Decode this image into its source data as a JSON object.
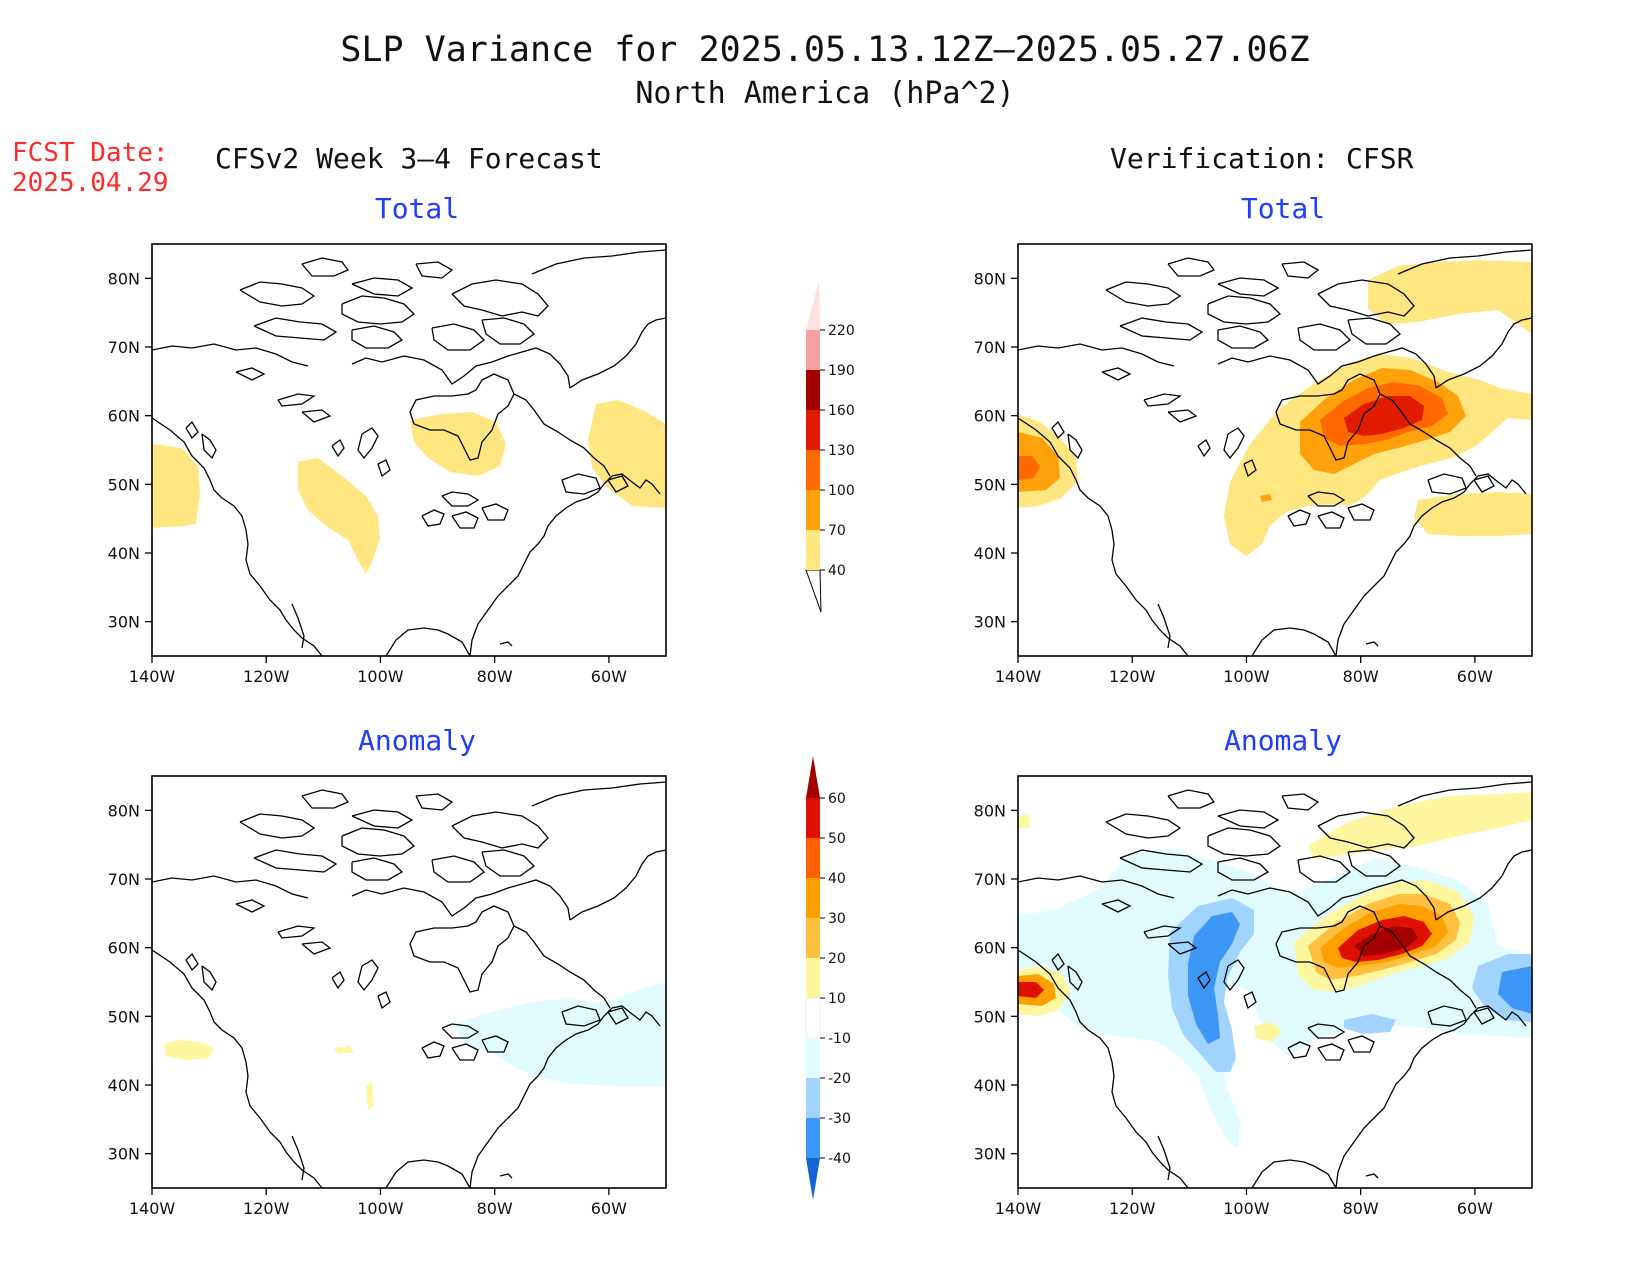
{
  "title": "SLP Variance for 2025.05.13.12Z–2025.05.27.06Z",
  "subtitle": "North America (hPa^2)",
  "fcst_date_label": "FCST Date:",
  "fcst_date": "2025.04.29",
  "left_column_title": "CFSv2 Week 3–4 Forecast",
  "right_column_title": "Verification: CFSR",
  "panels": {
    "forecast_total": {
      "subtitle": "Total"
    },
    "forecast_anomaly": {
      "subtitle": "Anomaly"
    },
    "verification_total": {
      "subtitle": "Total"
    },
    "verification_anomaly": {
      "subtitle": "Anomaly"
    }
  },
  "map": {
    "lon_range": [
      -140,
      -50
    ],
    "lat_range": [
      25,
      85
    ],
    "lon_ticks": [
      "140W",
      "120W",
      "100W",
      "80W",
      "60W"
    ],
    "lat_ticks": [
      "30N",
      "40N",
      "50N",
      "60N",
      "70N",
      "80N"
    ]
  },
  "total_colorbar": {
    "levels": [
      "40",
      "70",
      "100",
      "130",
      "160",
      "190",
      "220"
    ],
    "colors": [
      "#ffe680",
      "#ffa10a",
      "#ff6a00",
      "#e11b00",
      "#a00000",
      "#f4a3a3",
      "#fde0e0"
    ]
  },
  "anomaly_colorbar": {
    "levels": [
      "60",
      "50",
      "40",
      "30",
      "20",
      "10",
      "-10",
      "-20",
      "-30",
      "-40"
    ],
    "colors": [
      "#a50000",
      "#e01000",
      "#ff6000",
      "#ffa000",
      "#ffc040",
      "#fff6a0",
      "#ffffff",
      "#e0fcff",
      "#a0d4ff",
      "#3c96f5",
      "#1464d2"
    ]
  },
  "chart_data": [
    {
      "type": "map",
      "name": "forecast_total",
      "features": [
        "SLP variance 40-70 over Hudson Bay, Labrador, NE Pacific coast, central Plains"
      ]
    },
    {
      "type": "map",
      "name": "forecast_anomaly",
      "features": [
        "weak -10 to -20 over Great Lakes / New England",
        "weak 10-20 over NE Pacific"
      ]
    },
    {
      "type": "map",
      "name": "verification_total",
      "features": [
        "maximum 130-160 over Quebec/Labrador",
        "40-100 off Pacific NW coast"
      ]
    },
    {
      "type": "map",
      "name": "verification_anomaly",
      "features": [
        "positive 40-60 over Quebec",
        "negative -30 to -40 over Prairies",
        "positive 30-50 off Pacific NW"
      ]
    }
  ]
}
